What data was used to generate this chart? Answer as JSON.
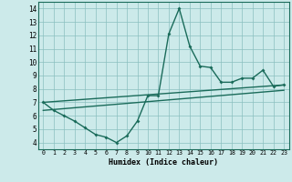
{
  "xlabel": "Humidex (Indice chaleur)",
  "ylabel": "",
  "bg_color": "#cceaea",
  "line_color": "#1a6b5a",
  "xlim": [
    -0.5,
    23.5
  ],
  "ylim": [
    3.5,
    14.5
  ],
  "xticks": [
    0,
    1,
    2,
    3,
    4,
    5,
    6,
    7,
    8,
    9,
    10,
    11,
    12,
    13,
    14,
    15,
    16,
    17,
    18,
    19,
    20,
    21,
    22,
    23
  ],
  "yticks": [
    4,
    5,
    6,
    7,
    8,
    9,
    10,
    11,
    12,
    13,
    14
  ],
  "series1_x": [
    0,
    1,
    2,
    3,
    4,
    5,
    6,
    7,
    8,
    9,
    10,
    11,
    12,
    13,
    14,
    15,
    16,
    17,
    18,
    19,
    20,
    21,
    22,
    23
  ],
  "series1_y": [
    7.0,
    6.4,
    6.0,
    5.6,
    5.1,
    4.6,
    4.4,
    4.0,
    4.5,
    5.6,
    7.5,
    7.5,
    12.1,
    14.0,
    11.2,
    9.7,
    9.6,
    8.5,
    8.5,
    8.8,
    8.8,
    9.4,
    8.2,
    8.3
  ],
  "series2_x": [
    0,
    23
  ],
  "series2_y": [
    7.0,
    8.3
  ],
  "series3_x": [
    0,
    23
  ],
  "series3_y": [
    6.4,
    7.9
  ],
  "grid_color": "#8bbfbf",
  "grid_lw": 0.5
}
